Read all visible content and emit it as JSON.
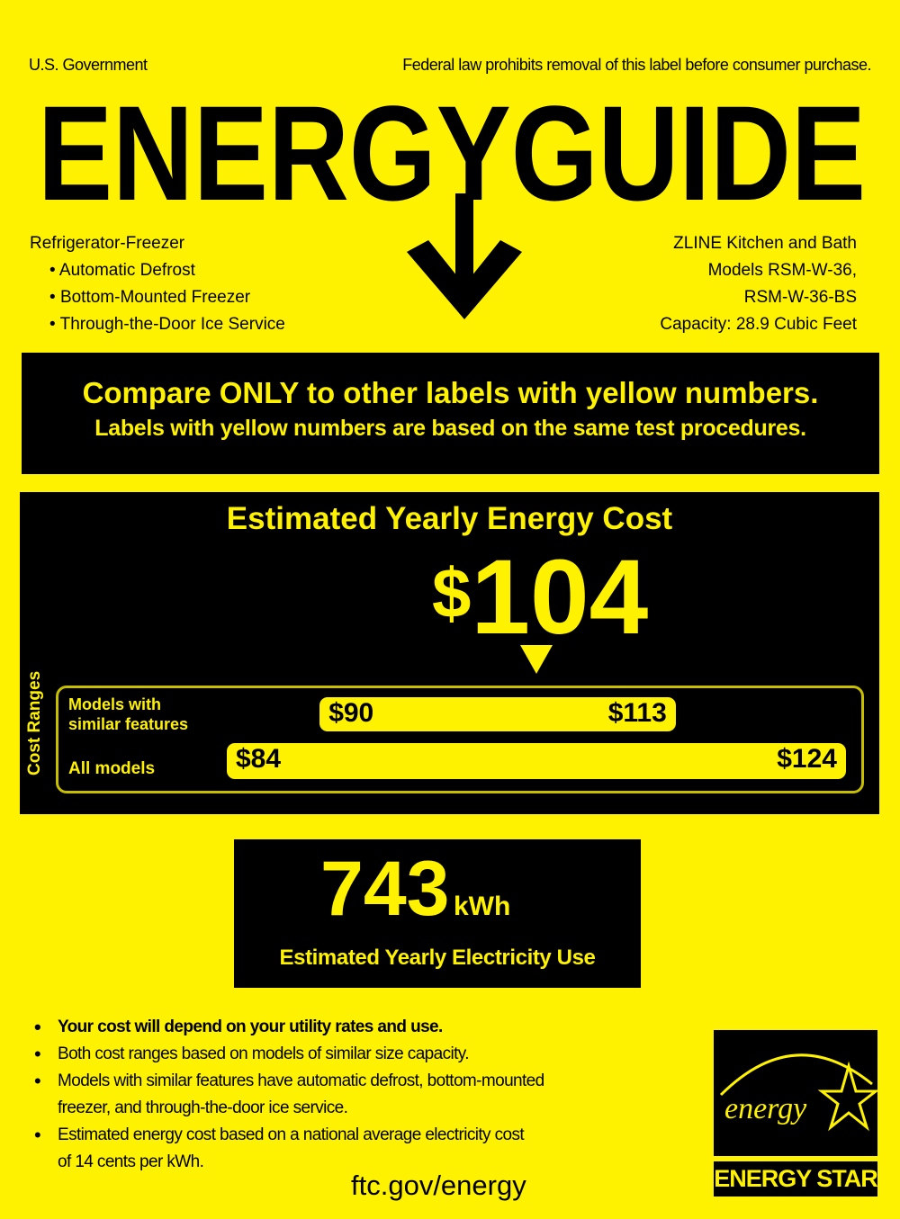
{
  "header": {
    "left": "U.S. Government",
    "right": "Federal law prohibits removal of this label before consumer purchase.",
    "title": "ENERGYGUIDE"
  },
  "product": {
    "type": "Refrigerator-Freezer",
    "features": [
      "Automatic Defrost",
      "Bottom-Mounted Freezer",
      "Through-the-Door Ice Service"
    ],
    "manufacturer": "ZLINE Kitchen and Bath",
    "models_line1": "Models RSM-W-36,",
    "models_line2": "RSM-W-36-BS",
    "capacity": "Capacity: 28.9 Cubic Feet"
  },
  "compare": {
    "line1": "Compare ONLY to other labels with yellow numbers.",
    "line2": "Labels with yellow numbers are based on the same test procedures."
  },
  "cost": {
    "heading": "Estimated Yearly Energy Cost",
    "currency": "$",
    "amount": "104",
    "value": 104,
    "ranges_label": "Cost Ranges",
    "similar": {
      "label1": "Models with",
      "label2": "similar features",
      "min_label": "$90",
      "max_label": "$113",
      "min": 90,
      "max": 113
    },
    "all": {
      "label": "All models",
      "min_label": "$84",
      "max_label": "$124",
      "min": 84,
      "max": 124
    }
  },
  "electricity": {
    "value": "743",
    "unit": "kWh",
    "label": "Estimated Yearly Electricity Use"
  },
  "notes": [
    "Your cost will depend on your utility rates and use.",
    "Both cost ranges based on models of similar size capacity.",
    "Models with similar features have automatic defrost, bottom-mounted",
    "freezer, and through-the-door ice service.",
    "Estimated energy cost based on a national average electricity cost",
    "of 14 cents per kWh."
  ],
  "footer": {
    "url": "ftc.gov/energy"
  },
  "energy_star": {
    "script": "energy",
    "label": "ENERGY STAR"
  },
  "colors": {
    "yellow": "#fff200",
    "black": "#000000"
  }
}
